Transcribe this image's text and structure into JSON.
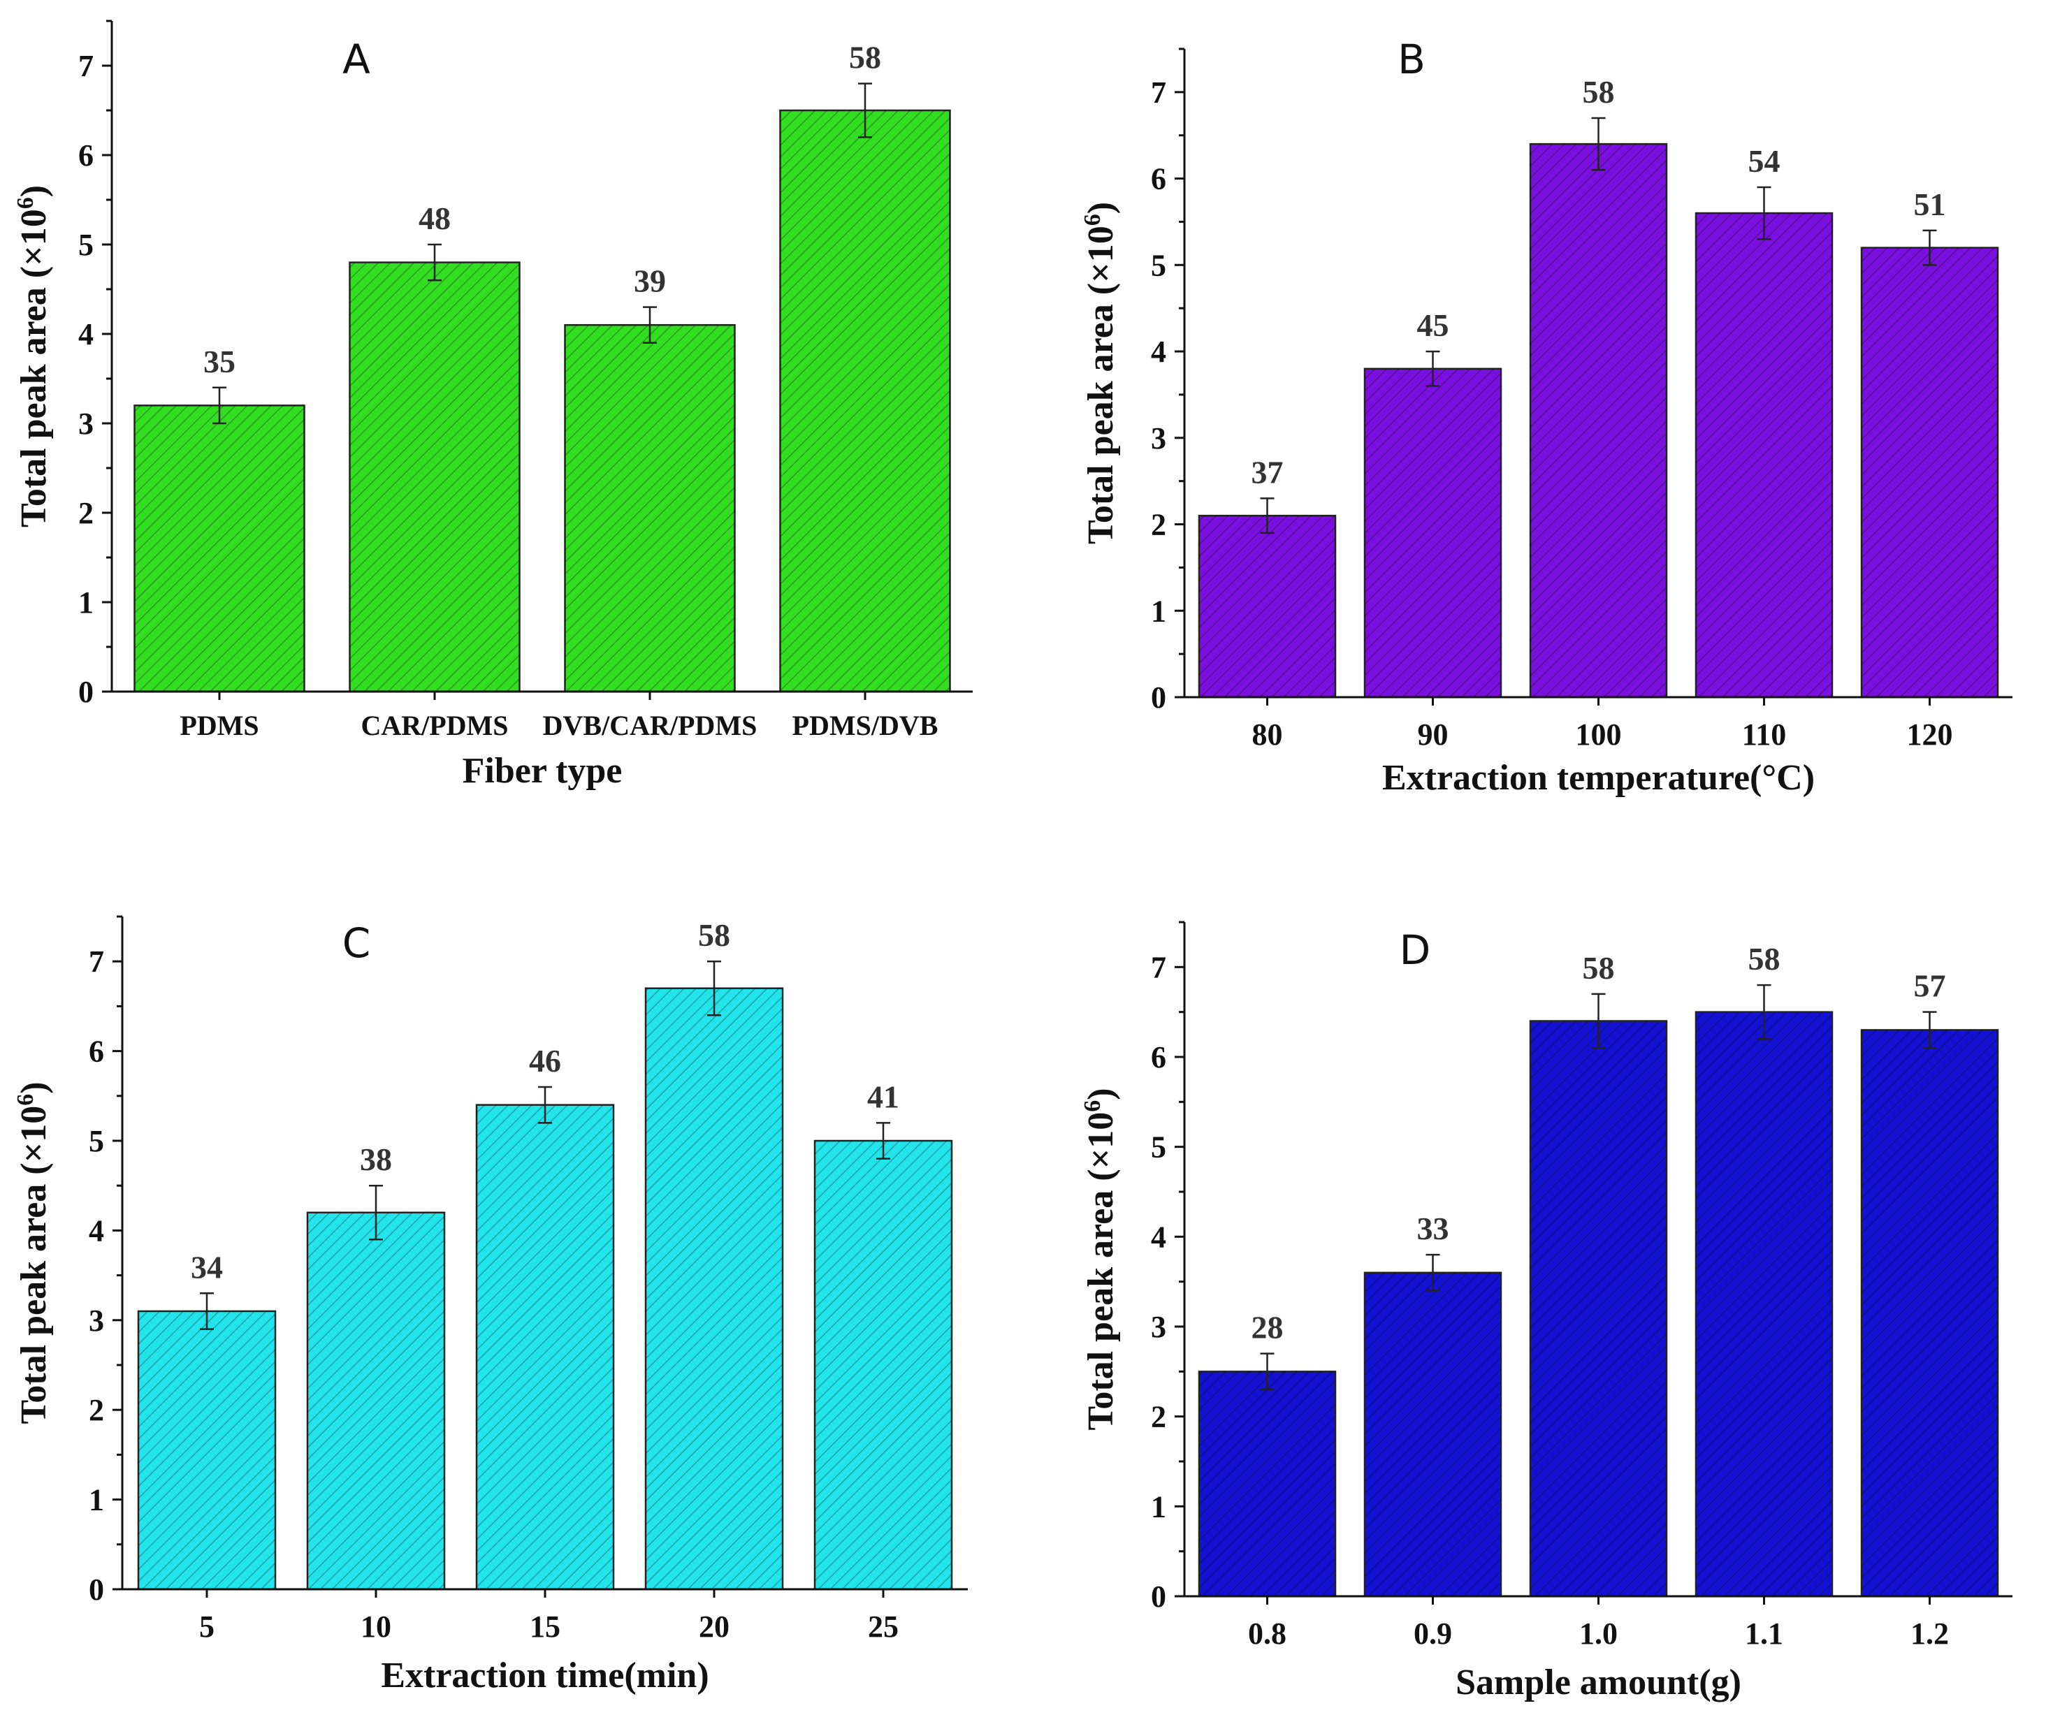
{
  "chart_data": [
    {
      "type": "bar",
      "panel": "A",
      "categories": [
        "PDMS",
        "CAR/PDMS",
        "DVB/CAR/PDMS",
        "PDMS/DVB"
      ],
      "values": [
        3.2,
        4.8,
        4.1,
        6.5
      ],
      "errors": [
        0.2,
        0.2,
        0.2,
        0.3
      ],
      "data_labels": [
        "35",
        "48",
        "39",
        "58"
      ],
      "xlabel": "Fiber type",
      "ylabel_main": "Total peak area (×10",
      "ylabel_exp": "6",
      "ylabel_end": ")",
      "ylim": [
        0,
        7.5
      ],
      "yticks": [
        "0",
        "1",
        "2",
        "3",
        "4",
        "5",
        "6",
        "7"
      ],
      "color": "#33dd22",
      "grid": false
    },
    {
      "type": "bar",
      "panel": "B",
      "categories": [
        "80",
        "90",
        "100",
        "110",
        "120"
      ],
      "values": [
        2.1,
        3.8,
        6.4,
        5.6,
        5.2
      ],
      "errors": [
        0.2,
        0.2,
        0.3,
        0.3,
        0.2
      ],
      "data_labels": [
        "37",
        "45",
        "58",
        "54",
        "51"
      ],
      "xlabel": "Extraction temperature(°C)",
      "ylabel_main": "Total peak area (×10",
      "ylabel_exp": "6",
      "ylabel_end": ")",
      "ylim": [
        0,
        7.5
      ],
      "yticks": [
        "0",
        "1",
        "2",
        "3",
        "4",
        "5",
        "6",
        "7"
      ],
      "color": "#7a10dd",
      "grid": false
    },
    {
      "type": "bar",
      "panel": "C",
      "categories": [
        "5",
        "10",
        "15",
        "20",
        "25"
      ],
      "values": [
        3.1,
        4.2,
        5.4,
        6.7,
        5.0
      ],
      "errors": [
        0.2,
        0.3,
        0.2,
        0.3,
        0.2
      ],
      "data_labels": [
        "34",
        "38",
        "46",
        "58",
        "41"
      ],
      "xlabel": "Extraction time(min)",
      "ylabel_main": "Total peak area (×10",
      "ylabel_exp": "6",
      "ylabel_end": ")",
      "ylim": [
        0,
        7.5
      ],
      "yticks": [
        "0",
        "1",
        "2",
        "3",
        "4",
        "5",
        "6",
        "7"
      ],
      "color": "#22e4ea",
      "grid": false
    },
    {
      "type": "bar",
      "panel": "D",
      "categories": [
        "0.8",
        "0.9",
        "1.0",
        "1.1",
        "1.2"
      ],
      "values": [
        2.5,
        3.6,
        6.4,
        6.5,
        6.3
      ],
      "errors": [
        0.2,
        0.2,
        0.3,
        0.3,
        0.2
      ],
      "data_labels": [
        "28",
        "33",
        "58",
        "58",
        "57"
      ],
      "xlabel": "Sample amount(g)",
      "ylabel_main": "Total peak area (×10",
      "ylabel_exp": "6",
      "ylabel_end": ")",
      "ylim": [
        0,
        7.5
      ],
      "yticks": [
        "0",
        "1",
        "2",
        "3",
        "4",
        "5",
        "6",
        "7"
      ],
      "color": "#1212d0",
      "grid": false
    }
  ]
}
